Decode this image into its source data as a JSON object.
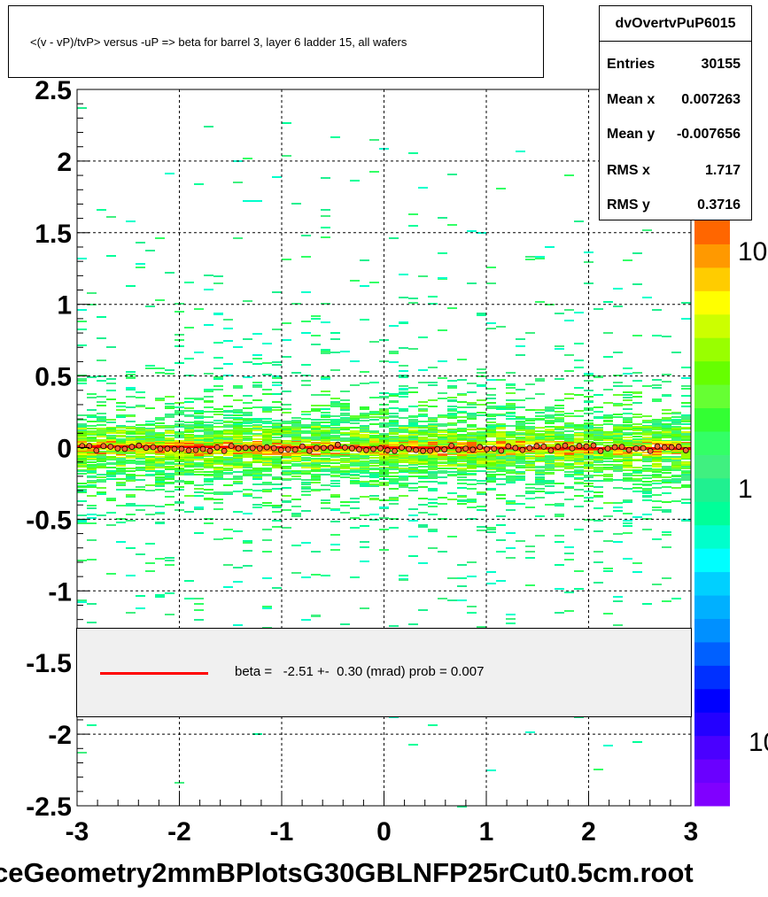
{
  "title": "<(v - vP)/tvP> versus  -uP => beta for barrel 3, layer 6 ladder 15, all wafers",
  "stats": {
    "name": "dvOvertvPuP6015",
    "rows": [
      {
        "key": "Entries",
        "value": "30155"
      },
      {
        "key": "Mean x",
        "value": "0.007263"
      },
      {
        "key": "Mean y",
        "value": "-0.007656"
      },
      {
        "key": "RMS x",
        "value": "1.717"
      },
      {
        "key": "RMS y",
        "value": "0.3716"
      }
    ]
  },
  "legend": {
    "fit_text": "beta =   -2.51 +-  0.30 (mrad) prob = 0.007",
    "line_color": "#ff0000"
  },
  "footer": "ceGeometry2mmBPlotsG30GBLNFP25rCut0.5cm.root",
  "chart_data": {
    "type": "heatmap",
    "xlim": [
      -3,
      3
    ],
    "ylim": [
      -2.5,
      2.5
    ],
    "x_ticks": [
      "-3",
      "-2",
      "-1",
      "0",
      "1",
      "2",
      "3"
    ],
    "y_ticks": [
      "2.5",
      "2",
      "1.5",
      "1",
      "0.5",
      "0",
      "-0.5",
      "-1",
      "-1.5",
      "-2",
      "-2.5"
    ],
    "grid": true,
    "colorbar": {
      "log_scale": true,
      "labels": [
        "10",
        "1",
        "10"
      ]
    },
    "fit_line": {
      "slope": -0.00251,
      "intercept": 0.0,
      "color": "#ff0000"
    },
    "profile_points": {
      "x_start": -2.95,
      "x_end": 2.95,
      "count": 86,
      "y_mean": -0.005,
      "y_spread": 0.02
    },
    "distribution": {
      "x_mean": 0.007263,
      "y_mean": -0.007656,
      "x_rms": 1.717,
      "y_rms": 0.3716,
      "entries": 30155
    },
    "palette": [
      "#8000ff",
      "#6a00ff",
      "#4a00ff",
      "#2400ff",
      "#0000ff",
      "#0030ff",
      "#0060ff",
      "#0090ff",
      "#00b0ff",
      "#00d0ff",
      "#00ffff",
      "#00ffcc",
      "#00ff99",
      "#20f090",
      "#40f080",
      "#33ff66",
      "#33ff33",
      "#66ff33",
      "#66ff00",
      "#99ff00",
      "#ccff00",
      "#ffff00",
      "#ffcc00",
      "#ff9900",
      "#ff6600"
    ]
  }
}
